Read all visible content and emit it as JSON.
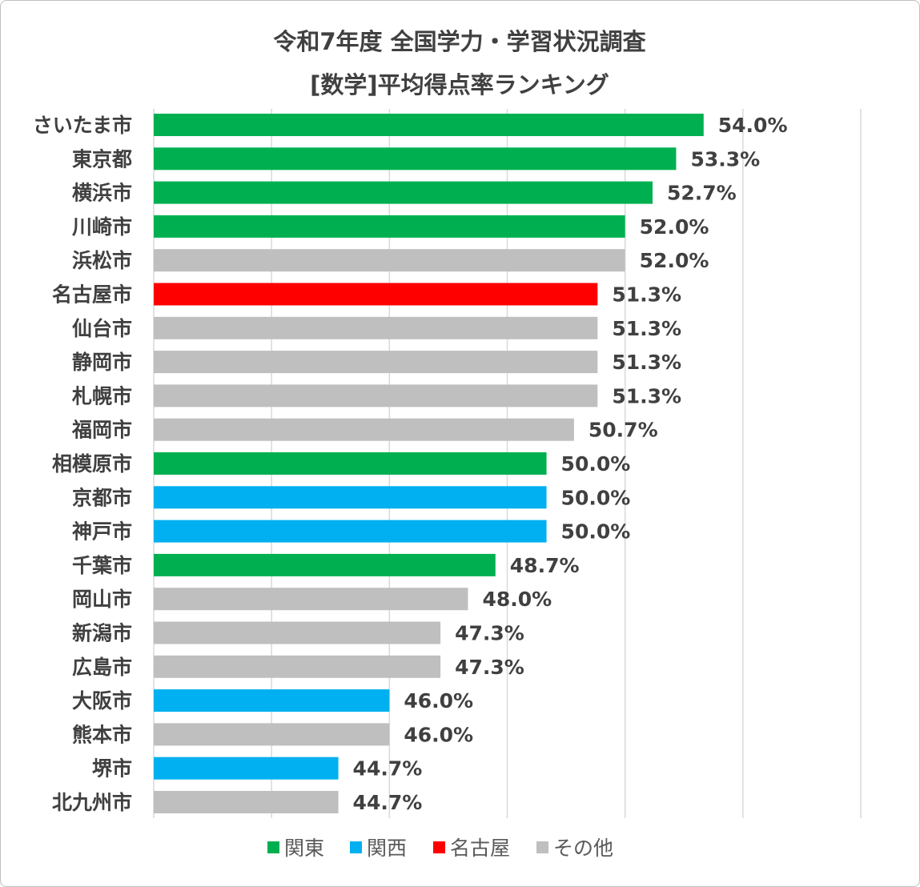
{
  "chart_data": {
    "type": "bar",
    "orientation": "horizontal",
    "title": [
      "令和7年度 全国学力・学習状況調査",
      "[数学]平均得点率ランキング"
    ],
    "xlim": [
      40,
      58
    ],
    "x_grid_step": 3,
    "grid": true,
    "legend_position": "bottom",
    "value_suffix": "%",
    "groups": [
      {
        "name": "関東",
        "color": "#00b050"
      },
      {
        "name": "関西",
        "color": "#00b0f0"
      },
      {
        "name": "名古屋",
        "color": "#ff0000"
      },
      {
        "name": "その他",
        "color": "#bfbfbf"
      }
    ],
    "bars": [
      {
        "category": "さいたま市",
        "value": 54.0,
        "group": "関東"
      },
      {
        "category": "東京都",
        "value": 53.3,
        "group": "関東"
      },
      {
        "category": "横浜市",
        "value": 52.7,
        "group": "関東"
      },
      {
        "category": "川崎市",
        "value": 52.0,
        "group": "関東"
      },
      {
        "category": "浜松市",
        "value": 52.0,
        "group": "その他"
      },
      {
        "category": "名古屋市",
        "value": 51.3,
        "group": "名古屋"
      },
      {
        "category": "仙台市",
        "value": 51.3,
        "group": "その他"
      },
      {
        "category": "静岡市",
        "value": 51.3,
        "group": "その他"
      },
      {
        "category": "札幌市",
        "value": 51.3,
        "group": "その他"
      },
      {
        "category": "福岡市",
        "value": 50.7,
        "group": "その他"
      },
      {
        "category": "相模原市",
        "value": 50.0,
        "group": "関東"
      },
      {
        "category": "京都市",
        "value": 50.0,
        "group": "関西"
      },
      {
        "category": "神戸市",
        "value": 50.0,
        "group": "関西"
      },
      {
        "category": "千葉市",
        "value": 48.7,
        "group": "関東"
      },
      {
        "category": "岡山市",
        "value": 48.0,
        "group": "その他"
      },
      {
        "category": "新潟市",
        "value": 47.3,
        "group": "その他"
      },
      {
        "category": "広島市",
        "value": 47.3,
        "group": "その他"
      },
      {
        "category": "大阪市",
        "value": 46.0,
        "group": "関西"
      },
      {
        "category": "熊本市",
        "value": 46.0,
        "group": "その他"
      },
      {
        "category": "堺市",
        "value": 44.7,
        "group": "関西"
      },
      {
        "category": "北九州市",
        "value": 44.7,
        "group": "その他"
      }
    ]
  }
}
